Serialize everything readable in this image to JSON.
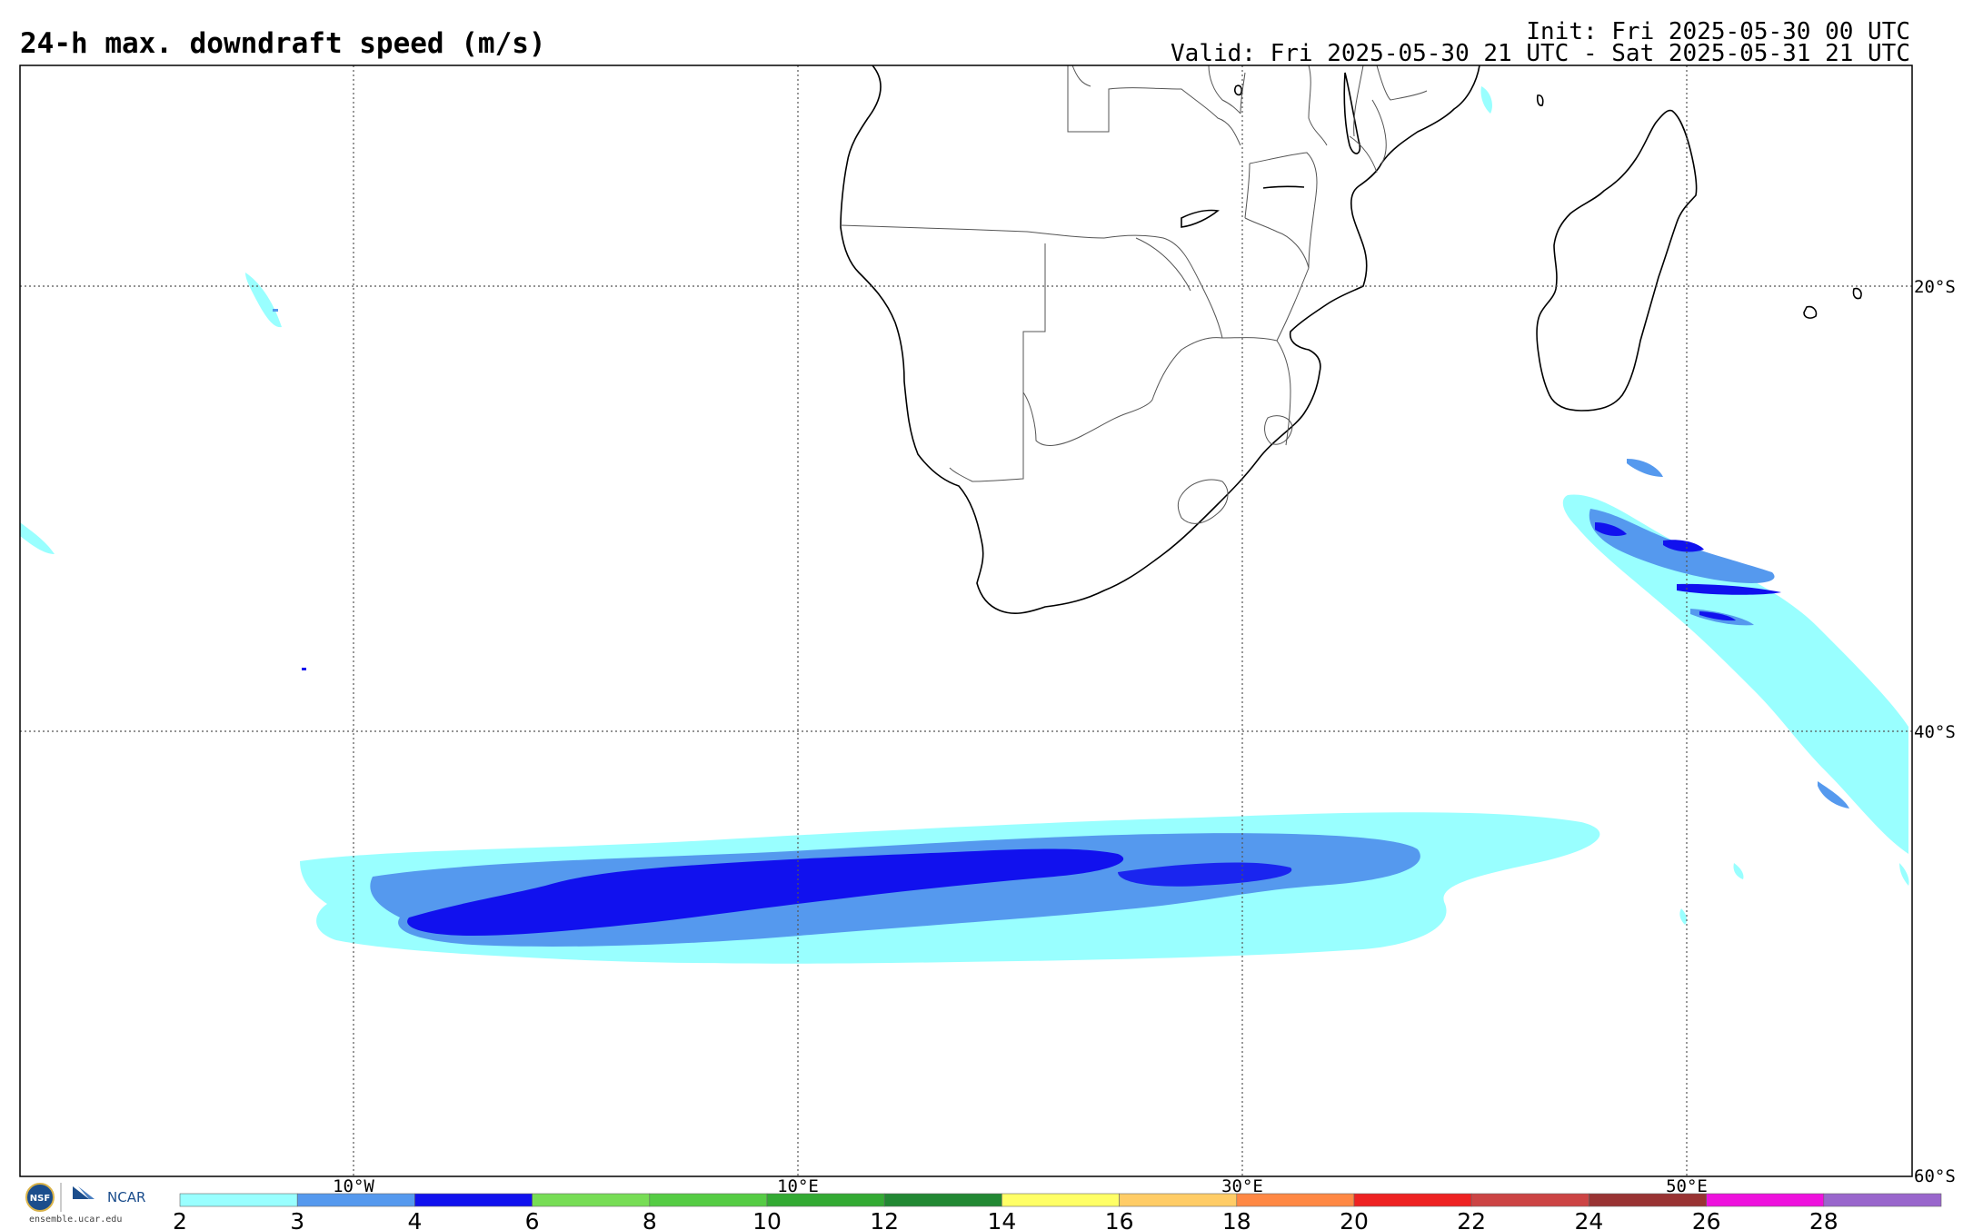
{
  "header": {
    "title": "24-h max. downdraft speed (m/s)",
    "init": "Init: Fri 2025-05-30 00 UTC",
    "valid": "Valid: Fri 2025-05-30 21 UTC - Sat 2025-05-31 21 UTC"
  },
  "map": {
    "region": "Southern Africa and South Atlantic / Indian Ocean",
    "lat_range": [
      -60,
      10
    ],
    "lon_range": [
      -25,
      60
    ],
    "grid": true,
    "lat_labels": [
      "20°S",
      "40°S",
      "60°S"
    ],
    "lon_labels": [
      "10°W",
      "10°E",
      "30°E",
      "50°E"
    ],
    "features": [
      {
        "name": "large downdraft band south of Africa",
        "max_level": "4-6"
      },
      {
        "name": "streaks southeast of Madagascar",
        "max_level": "4-6"
      }
    ]
  },
  "colorbar": {
    "labels": [
      "2",
      "3",
      "4",
      "6",
      "8",
      "10",
      "12",
      "14",
      "16",
      "18",
      "20",
      "22",
      "24",
      "26",
      "28"
    ],
    "colors": [
      "#99ffff",
      "#5599ee",
      "#1111ee",
      "#77dd55",
      "#55cc44",
      "#33aa33",
      "#228833",
      "#ffff66",
      "#ffcc66",
      "#ff8844",
      "#ee2222",
      "#cc4444",
      "#993333",
      "#ee11dd",
      "#9966cc"
    ]
  },
  "footer": {
    "logo_text": "ensemble.ucar.edu",
    "ncar_label": "NCAR",
    "nsf_label": "NSF"
  }
}
